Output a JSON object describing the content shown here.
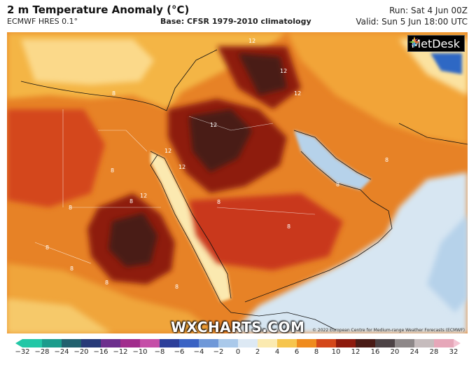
{
  "header": {
    "title": "2 m Temperature Anomaly (°C)",
    "model": "ECMWF HRES 0.1°",
    "base": "Base: CFSR 1979-2010 climatology",
    "run": "Run: Sat 4 Jun 00Z",
    "valid": "Valid: Sun 5 Jun 18:00 UTC"
  },
  "brand": {
    "logo": "MetDesk",
    "logo_icon": "metdesk-star-icon",
    "watermark": "WXCHARTS.COM"
  },
  "copyright": "© 2022 European Centre for Medium-range Weather Forecasts (ECMWF)",
  "contour_labels": [
    "12",
    "12",
    "12",
    "12",
    "12",
    "12",
    "12",
    "8",
    "8",
    "8",
    "8",
    "8",
    "8",
    "8",
    "8",
    "8",
    "8",
    "8",
    "8"
  ],
  "colorbar": {
    "ticks": [
      "−32",
      "−28",
      "−24",
      "−20",
      "−16",
      "−12",
      "−10",
      "−8",
      "−6",
      "−4",
      "−2",
      "0",
      "2",
      "4",
      "6",
      "8",
      "10",
      "12",
      "16",
      "20",
      "24",
      "28",
      "32"
    ],
    "colors": [
      "#22c7a6",
      "#1b9c8c",
      "#21606e",
      "#273a78",
      "#6d2f8d",
      "#a12d8c",
      "#c54fa7",
      "#2d3f9a",
      "#3a63c4",
      "#6f98d8",
      "#aac9ea",
      "#dde9f4",
      "#fbeab0",
      "#f6c54e",
      "#ef8b1e",
      "#d4471a",
      "#8e1a0d",
      "#4a1b16",
      "#4d4346",
      "#8e8889",
      "#c6bcbd",
      "#e6a7b9"
    ]
  },
  "colors": {
    "hot": "#8e1a0d",
    "very_hot": "#4a1b16",
    "cool": "#d7e6f2",
    "sea": "#b6d2ea"
  }
}
